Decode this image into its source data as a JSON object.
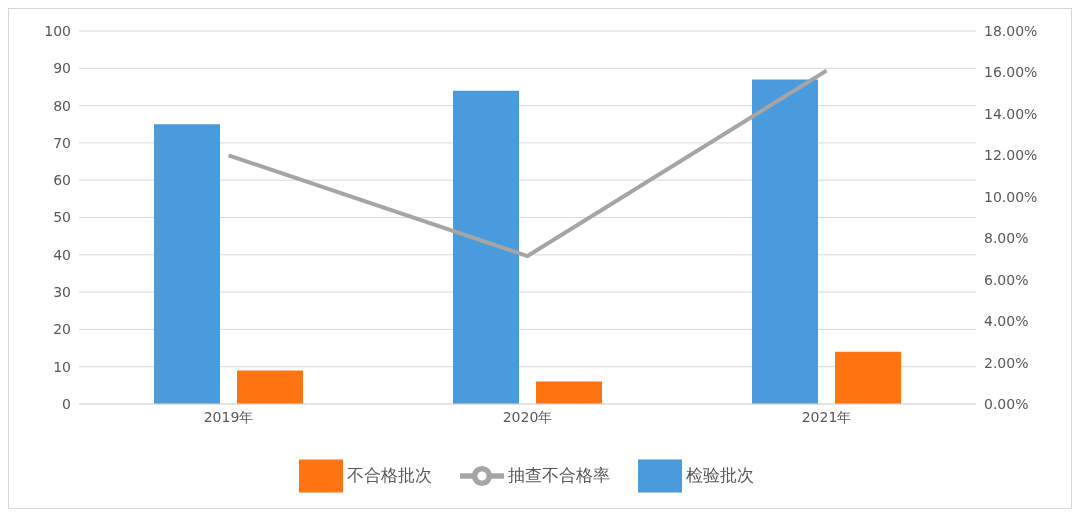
{
  "chart_data": {
    "type": "bar",
    "categories": [
      "2019年",
      "2020年",
      "2021年"
    ],
    "series": [
      {
        "name": "检验批次",
        "color": "#4a9bdc",
        "values": [
          75,
          84,
          87
        ]
      },
      {
        "name": "不合格批次",
        "color": "#ff7410",
        "values": [
          9,
          6,
          14
        ]
      },
      {
        "name": "抽查不合格率",
        "type": "line",
        "axis": "y2",
        "color": "#a5a5a5",
        "values": [
          0.12,
          0.0714,
          0.1609
        ]
      }
    ],
    "ylim": [
      0,
      100
    ],
    "yticks": [
      0,
      10,
      20,
      30,
      40,
      50,
      60,
      70,
      80,
      90,
      100
    ],
    "y2lim": [
      0,
      0.18
    ],
    "y2ticks": [
      {
        "value": 0,
        "label": "0.00%"
      },
      {
        "value": 0.02,
        "label": "2.00%"
      },
      {
        "value": 0.04,
        "label": "4.00%"
      },
      {
        "value": 0.06,
        "label": "6.00%"
      },
      {
        "value": 0.08,
        "label": "8.00%"
      },
      {
        "value": 0.1,
        "label": "10.00%"
      },
      {
        "value": 0.12,
        "label": "12.00%"
      },
      {
        "value": 0.14,
        "label": "14.00%"
      },
      {
        "value": 0.16,
        "label": "16.00%"
      },
      {
        "value": 0.18,
        "label": "18.00%"
      }
    ],
    "grid": "y",
    "legend": "bottom",
    "marker": "none"
  }
}
